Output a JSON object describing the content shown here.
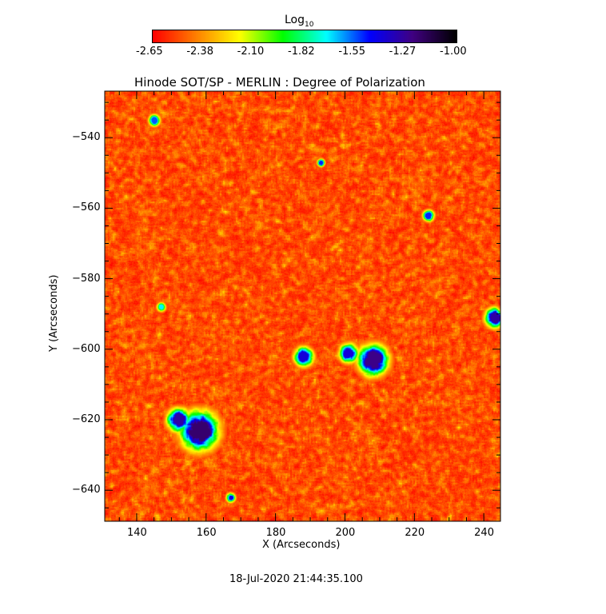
{
  "chart_data": {
    "type": "heatmap",
    "title": "Hinode SOT/SP - MERLIN : Degree of Polarization",
    "xlabel": "X (Arcseconds)",
    "ylabel": "Y (Arcseconds)",
    "xlim": [
      130.8,
      244.8
    ],
    "ylim": [
      -648.8,
      -526.8
    ],
    "xticks": [
      140,
      160,
      180,
      200,
      220,
      240
    ],
    "yticks": [
      -540,
      -560,
      -580,
      -600,
      -620,
      -640
    ],
    "colorbar": {
      "label": "Log",
      "label_sub": "10",
      "range": [
        -2.65,
        -1.0
      ],
      "ticks": [
        "-2.65",
        "-2.38",
        "-2.10",
        "-1.82",
        "-1.55",
        "-1.27",
        "-1.00"
      ],
      "colormap": [
        "#ff0000",
        "#ff8000",
        "#ffff00",
        "#00ff00",
        "#00ffff",
        "#0000ff",
        "#400080",
        "#000000"
      ]
    },
    "features": [
      {
        "x": 158,
        "y": -623,
        "peak": -1.2,
        "radius": 5
      },
      {
        "x": 152,
        "y": -620,
        "peak": -1.3,
        "radius": 3
      },
      {
        "x": 208,
        "y": -603,
        "peak": -1.25,
        "radius": 4
      },
      {
        "x": 201,
        "y": -601,
        "peak": -1.4,
        "radius": 2.5
      },
      {
        "x": 188,
        "y": -602,
        "peak": -1.4,
        "radius": 2.5
      },
      {
        "x": 243,
        "y": -591,
        "peak": -1.3,
        "radius": 2.5
      },
      {
        "x": 145,
        "y": -535,
        "peak": -1.55,
        "radius": 1.5
      },
      {
        "x": 224,
        "y": -562,
        "peak": -1.5,
        "radius": 1.5
      },
      {
        "x": 167,
        "y": -642,
        "peak": -1.4,
        "radius": 1.2
      },
      {
        "x": 193,
        "y": -547,
        "peak": -1.5,
        "radius": 1
      },
      {
        "x": 147,
        "y": -588,
        "peak": -1.7,
        "radius": 1.2
      }
    ]
  },
  "footer": {
    "timestamp": "18-Jul-2020 21:44:35.100"
  }
}
